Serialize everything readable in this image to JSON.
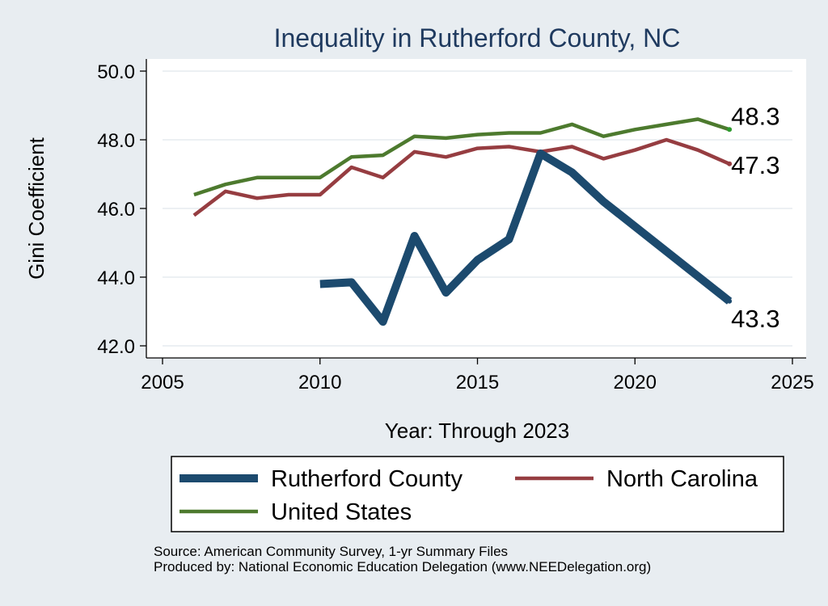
{
  "chart_data": {
    "type": "line",
    "title": "Inequality in Rutherford County, NC",
    "xlabel": "Year: Through 2023",
    "ylabel": "Gini Coefficient",
    "xlim": [
      2005,
      2025
    ],
    "ylim": [
      42,
      50
    ],
    "xticks": [
      2005,
      2010,
      2015,
      2020,
      2025
    ],
    "yticks": [
      42,
      44,
      46,
      48,
      50
    ],
    "ytick_labels": [
      "42.0",
      "44.0",
      "46.0",
      "48.0",
      "50.0"
    ],
    "grid": true,
    "legend_position": "bottom",
    "series": [
      {
        "name": "Rutherford County",
        "color": "#1c4a6e",
        "x": [
          2010,
          2011,
          2012,
          2013,
          2014,
          2015,
          2016,
          2017,
          2018,
          2019,
          2023
        ],
        "values": [
          43.8,
          43.85,
          42.7,
          45.2,
          43.55,
          44.5,
          45.1,
          47.6,
          47.05,
          46.2,
          43.3
        ],
        "end_label": "43.3"
      },
      {
        "name": "North Carolina",
        "color": "#963d41",
        "x": [
          2006,
          2007,
          2008,
          2009,
          2010,
          2011,
          2012,
          2013,
          2014,
          2015,
          2016,
          2017,
          2018,
          2019,
          2020,
          2021,
          2022,
          2023
        ],
        "values": [
          45.8,
          46.5,
          46.3,
          46.4,
          46.4,
          47.2,
          46.9,
          47.65,
          47.5,
          47.75,
          47.8,
          47.65,
          47.8,
          47.45,
          47.7,
          48.0,
          47.7,
          47.3
        ],
        "end_label": "47.3"
      },
      {
        "name": "United States",
        "color": "#4d7a2e",
        "x": [
          2006,
          2007,
          2008,
          2009,
          2010,
          2011,
          2012,
          2013,
          2014,
          2015,
          2016,
          2017,
          2018,
          2019,
          2020,
          2021,
          2022,
          2023
        ],
        "values": [
          46.4,
          46.7,
          46.9,
          46.9,
          46.9,
          47.5,
          47.55,
          48.1,
          48.05,
          48.15,
          48.2,
          48.2,
          48.45,
          48.1,
          48.3,
          48.45,
          48.6,
          48.3
        ],
        "end_label": "48.3"
      }
    ],
    "source_lines": [
      "Source: American Community Survey, 1-yr Summary Files",
      "Produced by: National Economic Education Delegation (www.NEEDelegation.org)"
    ]
  }
}
